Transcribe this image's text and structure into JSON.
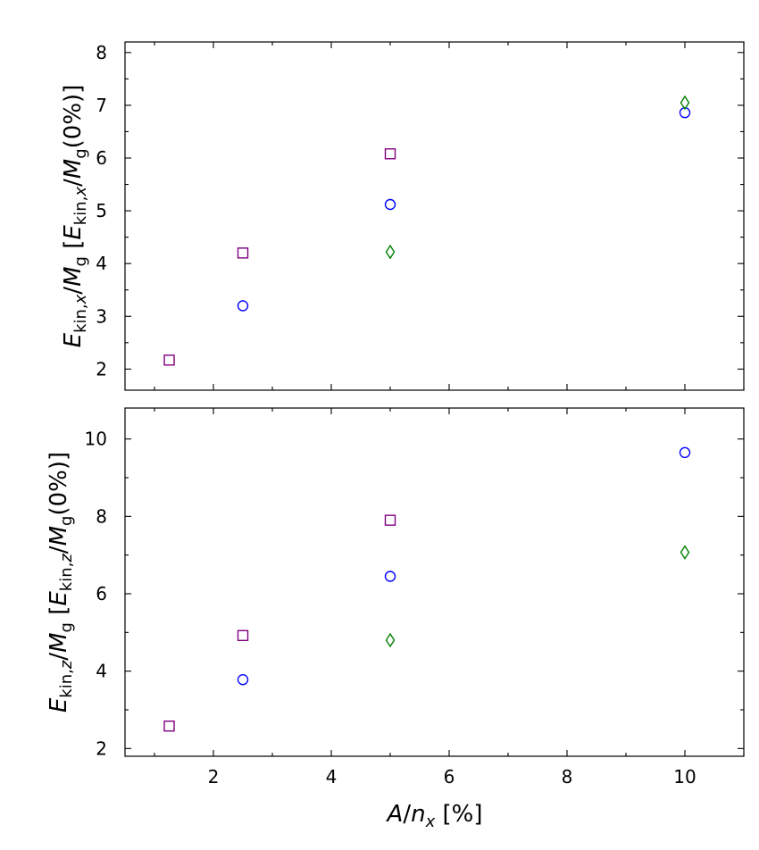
{
  "chart_data": [
    {
      "type": "scatter",
      "title": "",
      "xlabel": "A/n_x [%]",
      "ylabel": "E_kin,x/M_g [E_kin,x/M_g(0%)]",
      "xlim": [
        0.5,
        11
      ],
      "ylim": [
        1.6,
        8.2
      ],
      "xticks": [
        2,
        4,
        6,
        8,
        10
      ],
      "yticks": [
        2,
        3,
        4,
        5,
        6,
        7,
        8
      ],
      "xtick_labels": [],
      "ytick_labels": [
        "2",
        "3",
        "4",
        "5",
        "6",
        "7",
        "8"
      ],
      "grid": false,
      "series": [
        {
          "name": "squares",
          "marker": "square",
          "color": "#800080",
          "x": [
            1.25,
            2.5,
            5
          ],
          "y": [
            2.17,
            4.2,
            6.08
          ]
        },
        {
          "name": "circles",
          "marker": "circle",
          "color": "#0000ff",
          "x": [
            2.5,
            5,
            10
          ],
          "y": [
            3.2,
            5.12,
            6.86
          ]
        },
        {
          "name": "diamonds",
          "marker": "diamond",
          "color": "#008000",
          "x": [
            5,
            10
          ],
          "y": [
            4.22,
            7.05
          ]
        }
      ]
    },
    {
      "type": "scatter",
      "title": "",
      "xlabel": "A/n_x [%]",
      "ylabel": "E_kin,z/M_g [E_kin,z/M_g(0%)]",
      "xlim": [
        0.5,
        11
      ],
      "ylim": [
        1.8,
        10.8
      ],
      "xticks": [
        2,
        4,
        6,
        8,
        10
      ],
      "yticks": [
        2,
        4,
        6,
        8,
        10
      ],
      "xtick_labels": [
        "2",
        "4",
        "6",
        "8",
        "10"
      ],
      "ytick_labels": [
        "2",
        "4",
        "6",
        "8",
        "10"
      ],
      "grid": false,
      "series": [
        {
          "name": "squares",
          "marker": "square",
          "color": "#800080",
          "x": [
            1.25,
            2.5,
            5
          ],
          "y": [
            2.58,
            4.92,
            7.9
          ]
        },
        {
          "name": "circles",
          "marker": "circle",
          "color": "#0000ff",
          "x": [
            2.5,
            5,
            10
          ],
          "y": [
            3.78,
            6.45,
            9.65
          ]
        },
        {
          "name": "diamonds",
          "marker": "diamond",
          "color": "#008000",
          "x": [
            5,
            10
          ],
          "y": [
            4.8,
            7.07
          ]
        }
      ]
    }
  ]
}
